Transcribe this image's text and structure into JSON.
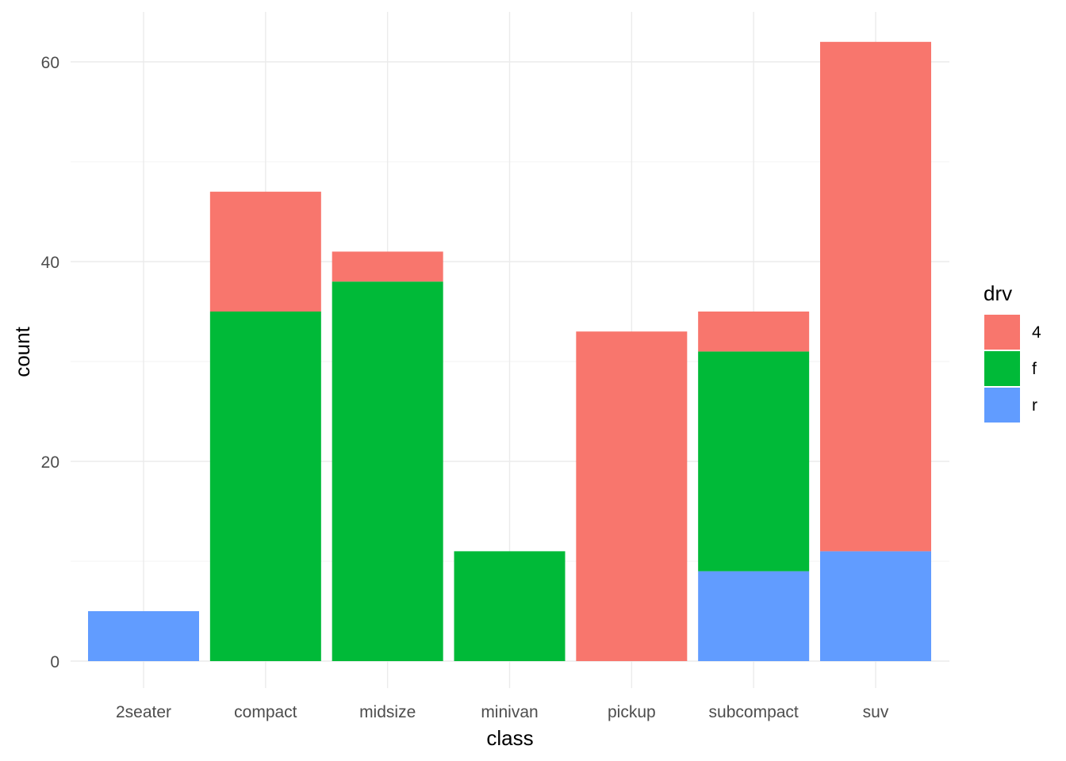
{
  "chart_data": {
    "type": "bar",
    "stacked": true,
    "title": "",
    "xlabel": "class",
    "ylabel": "count",
    "categories": [
      "2seater",
      "compact",
      "midsize",
      "minivan",
      "pickup",
      "subcompact",
      "suv"
    ],
    "series": [
      {
        "name": "4",
        "color": "#F8766D",
        "values": [
          0,
          12,
          3,
          0,
          33,
          4,
          51
        ]
      },
      {
        "name": "f",
        "color": "#00BA38",
        "values": [
          0,
          35,
          38,
          11,
          0,
          22,
          0
        ]
      },
      {
        "name": "r",
        "color": "#619CFF",
        "values": [
          5,
          0,
          0,
          0,
          0,
          9,
          11
        ]
      }
    ],
    "stack_order_bottom_to_top": [
      "r",
      "f",
      "4"
    ],
    "ylim": [
      0,
      62
    ],
    "y_ticks": [
      0,
      20,
      40,
      60
    ],
    "y_tick_labels": [
      "0",
      "20",
      "40",
      "60"
    ],
    "grid": true,
    "legend": {
      "title": "drv",
      "position": "right"
    }
  }
}
